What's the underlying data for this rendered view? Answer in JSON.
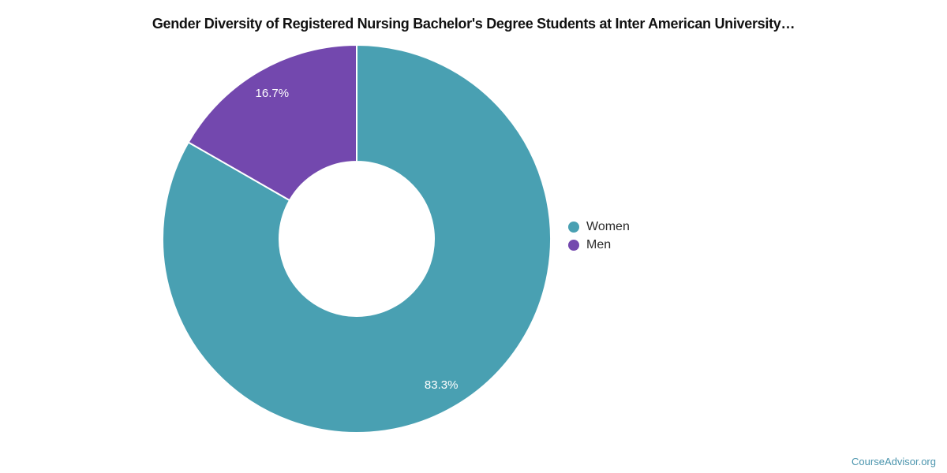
{
  "chart": {
    "title": "Gender Diversity of Registered Nursing Bachelor's Degree Students at Inter American University…"
  },
  "chart_data": {
    "type": "pie",
    "subtype": "donut",
    "title": "Gender Diversity of Registered Nursing Bachelor's Degree Students at Inter American University…",
    "categories": [
      "Women",
      "Men"
    ],
    "values": [
      83.3,
      16.7
    ],
    "slice_labels": [
      "83.3%",
      "16.7%"
    ],
    "colors": [
      "#49A0B2",
      "#7348AE"
    ],
    "slice_label_color": "#ffffff",
    "divider_color": "#ffffff",
    "legend_position": "right",
    "start_angle_deg": 0,
    "direction": "clockwise"
  },
  "legend": {
    "items": [
      {
        "label": "Women",
        "color": "#49A0B2"
      },
      {
        "label": "Men",
        "color": "#7348AE"
      }
    ]
  },
  "footer": {
    "link_label": "CourseAdvisor.org",
    "link_color": "#4A94AD"
  }
}
